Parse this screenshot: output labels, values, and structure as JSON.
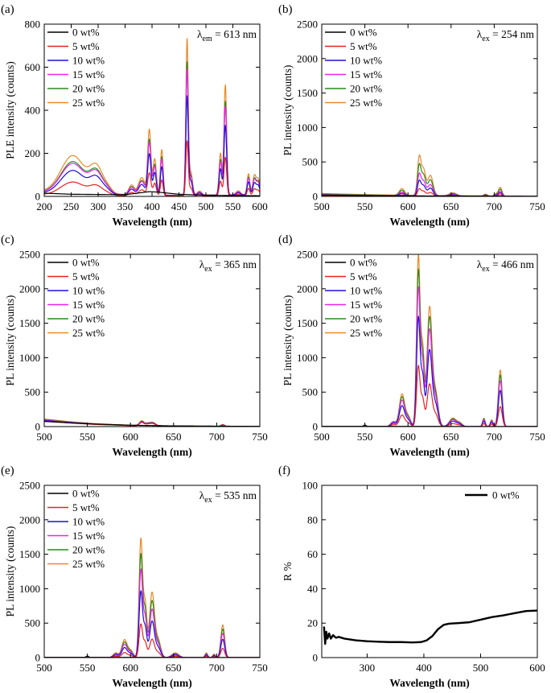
{
  "figure": {
    "colors": {
      "0 wt%": "#000000",
      "5 wt%": "#e8231f",
      "10 wt%": "#1a10d9",
      "15 wt%": "#ee22ee",
      "20 wt%": "#2a8a1e",
      "25 wt%": "#e8892b",
      "axis": "#000000"
    }
  },
  "chart_data": [
    {
      "id": "a",
      "panel_label": "(a)",
      "type": "line",
      "xlabel": "Wavelength (nm)",
      "ylabel": "PLE intensity (counts)",
      "xlim": [
        200,
        600
      ],
      "ylim": [
        0,
        800
      ],
      "xticks": [
        200,
        250,
        300,
        350,
        400,
        450,
        500,
        550,
        600
      ],
      "yticks": [
        0,
        200,
        400,
        600,
        800
      ],
      "annotation": {
        "symbol": "λ",
        "sub": "em",
        "text": " = 613 nm"
      },
      "legend": [
        "0 wt%",
        "5 wt%",
        "10 wt%",
        "15 wt%",
        "20 wt%",
        "25 wt%"
      ],
      "series_shape": {
        "baseline": [
          [
            200,
            0.12
          ],
          [
            240,
            0.08
          ],
          [
            300,
            0.07
          ],
          [
            360,
            0.05
          ],
          [
            400,
            0.04
          ],
          [
            450,
            0.03
          ],
          [
            500,
            0.04
          ],
          [
            600,
            0.05
          ]
        ],
        "peaks": [
          [
            253,
            1.0,
            22
          ],
          [
            297,
            0.65,
            12
          ],
          [
            318,
            0.12,
            8
          ],
          [
            362,
            0.25,
            5
          ],
          [
            381,
            0.45,
            6
          ],
          [
            395,
            1.7,
            3
          ],
          [
            405,
            0.95,
            3
          ],
          [
            418,
            1.2,
            2.5
          ],
          [
            465,
            4.1,
            2.2
          ],
          [
            472,
            0.6,
            3
          ],
          [
            488,
            0.1,
            4
          ],
          [
            527,
            1.1,
            2.5
          ],
          [
            536,
            2.9,
            2.5
          ],
          [
            560,
            0.1,
            4
          ],
          [
            579,
            0.55,
            2.5
          ],
          [
            590,
            0.5,
            3
          ],
          [
            597,
            0.4,
            3
          ]
        ]
      },
      "series": [
        {
          "name": "0 wt%",
          "scale": 0,
          "zero_shape": [
            [
              200,
              15
            ],
            [
              250,
              10
            ],
            [
              350,
              8
            ],
            [
              395,
              22
            ],
            [
              410,
              20
            ],
            [
              450,
              10
            ],
            [
              500,
              5
            ],
            [
              600,
              3
            ]
          ]
        },
        {
          "name": "5 wt%",
          "scale": 62
        },
        {
          "name": "10 wt%",
          "scale": 112
        },
        {
          "name": "15 wt%",
          "scale": 142
        },
        {
          "name": "20 wt%",
          "scale": 150
        },
        {
          "name": "25 wt%",
          "scale": 176
        }
      ]
    },
    {
      "id": "b",
      "panel_label": "(b)",
      "type": "line",
      "xlabel": "Wavelength (nm)",
      "ylabel": "PL intensity (counts)",
      "xlim": [
        500,
        750
      ],
      "ylim": [
        0,
        2500
      ],
      "xticks": [
        500,
        550,
        600,
        650,
        700,
        750
      ],
      "yticks": [
        0,
        500,
        1000,
        1500,
        2000,
        2500
      ],
      "annotation": {
        "symbol": "λ",
        "sub": "ex",
        "text": " = 254 nm"
      },
      "legend": [
        "0 wt%",
        "5 wt%",
        "10 wt%",
        "15 wt%",
        "20 wt%",
        "25 wt%"
      ],
      "series_shape": {
        "baseline": [
          [
            500,
            0.08
          ],
          [
            550,
            0.05
          ],
          [
            600,
            0.03
          ],
          [
            700,
            0.01
          ],
          [
            750,
            0.0
          ]
        ],
        "peaks": [
          [
            593,
            0.18,
            3
          ],
          [
            613,
            1.0,
            2
          ],
          [
            618,
            0.7,
            2.5
          ],
          [
            626,
            0.55,
            3
          ],
          [
            652,
            0.08,
            4
          ],
          [
            690,
            0.05,
            2
          ],
          [
            702,
            0.06,
            2
          ],
          [
            707,
            0.24,
            2
          ]
        ]
      },
      "series": [
        {
          "name": "0 wt%",
          "scale": 0,
          "zero_shape": [
            [
              500,
              20
            ],
            [
              550,
              12
            ],
            [
              600,
              8
            ],
            [
              650,
              5
            ],
            [
              750,
              2
            ]
          ]
        },
        {
          "name": "5 wt%",
          "scale": 100
        },
        {
          "name": "10 wt%",
          "scale": 210
        },
        {
          "name": "15 wt%",
          "scale": 300
        },
        {
          "name": "20 wt%",
          "scale": 420
        },
        {
          "name": "25 wt%",
          "scale": 530
        }
      ]
    },
    {
      "id": "c",
      "panel_label": "(c)",
      "type": "line",
      "xlabel": "Wavelength (nm)",
      "ylabel": "PL intensity (counts)",
      "xlim": [
        500,
        750
      ],
      "ylim": [
        0,
        2500
      ],
      "xticks": [
        500,
        550,
        600,
        650,
        700,
        750
      ],
      "yticks": [
        0,
        500,
        1000,
        1500,
        2000,
        2500
      ],
      "annotation": {
        "symbol": "λ",
        "sub": "ex",
        "text": " = 365 nm"
      },
      "legend": [
        "0 wt%",
        "5 wt%",
        "10 wt%",
        "15 wt%",
        "20 wt%",
        "25 wt%"
      ],
      "series_shape": {
        "baseline": [
          [
            500,
            1.0
          ],
          [
            530,
            0.65
          ],
          [
            560,
            0.38
          ],
          [
            600,
            0.18
          ],
          [
            650,
            0.08
          ],
          [
            700,
            0.03
          ],
          [
            750,
            0.01
          ]
        ],
        "peaks": [
          [
            613,
            0.6,
            2.5
          ],
          [
            620,
            0.3,
            3
          ],
          [
            626,
            0.4,
            3
          ],
          [
            707,
            0.25,
            2
          ]
        ]
      },
      "series": [
        {
          "name": "0 wt%",
          "scale": 0,
          "zero_shape": [
            [
              500,
              75
            ],
            [
              550,
              40
            ],
            [
              600,
              20
            ],
            [
              650,
              10
            ],
            [
              750,
              3
            ]
          ]
        },
        {
          "name": "5 wt%",
          "scale": 80
        },
        {
          "name": "10 wt%",
          "scale": 88
        },
        {
          "name": "15 wt%",
          "scale": 95
        },
        {
          "name": "20 wt%",
          "scale": 102
        },
        {
          "name": "25 wt%",
          "scale": 110
        }
      ]
    },
    {
      "id": "d",
      "panel_label": "(d)",
      "type": "line",
      "xlabel": "Wavelength (nm)",
      "ylabel": "PL intensity (counts)",
      "xlim": [
        500,
        750
      ],
      "ylim": [
        0,
        2500
      ],
      "xticks": [
        500,
        550,
        600,
        650,
        700,
        750
      ],
      "yticks": [
        0,
        500,
        1000,
        1500,
        2000,
        2500
      ],
      "annotation": {
        "symbol": "λ",
        "sub": "ex",
        "text": " = 466 nm"
      },
      "legend": [
        "0 wt%",
        "5 wt%",
        "10 wt%",
        "15 wt%",
        "20 wt%",
        "25 wt%"
      ],
      "series_shape": {
        "baseline": [
          [
            500,
            0
          ],
          [
            750,
            0
          ]
        ],
        "peaks": [
          [
            583,
            0.03,
            3
          ],
          [
            593,
            0.19,
            3
          ],
          [
            600,
            0.06,
            3
          ],
          [
            612,
            1.0,
            2
          ],
          [
            617,
            0.45,
            2
          ],
          [
            625,
            0.7,
            2.8
          ],
          [
            632,
            0.2,
            3
          ],
          [
            652,
            0.05,
            4
          ],
          [
            660,
            0.02,
            3
          ],
          [
            688,
            0.05,
            1.5
          ],
          [
            697,
            0.04,
            1.5
          ],
          [
            707,
            0.335,
            2.2
          ]
        ]
      },
      "series": [
        {
          "name": "0 wt%",
          "scale": 0,
          "zero_shape": [
            [
              500,
              3
            ],
            [
              547,
              3
            ],
            [
              550,
              25
            ],
            [
              553,
              3
            ],
            [
              750,
              2
            ]
          ]
        },
        {
          "name": "5 wt%",
          "scale": 870
        },
        {
          "name": "10 wt%",
          "scale": 1570
        },
        {
          "name": "15 wt%",
          "scale": 1990
        },
        {
          "name": "20 wt%",
          "scale": 2240
        },
        {
          "name": "25 wt%",
          "scale": 2450
        }
      ]
    },
    {
      "id": "e",
      "panel_label": "(e)",
      "type": "line",
      "xlabel": "Wavelength (nm)",
      "ylabel": "PL intensity (counts)",
      "xlim": [
        500,
        750
      ],
      "ylim": [
        0,
        2500
      ],
      "xticks": [
        500,
        550,
        600,
        650,
        700,
        750
      ],
      "yticks": [
        0,
        500,
        1000,
        1500,
        2000,
        2500
      ],
      "annotation": {
        "symbol": "λ",
        "sub": "ex",
        "text": " = 535 nm"
      },
      "legend": [
        "0 wt%",
        "5 wt%",
        "10 wt%",
        "15 wt%",
        "20 wt%",
        "25 wt%"
      ],
      "series_shape": {
        "baseline": [
          [
            500,
            0
          ],
          [
            750,
            0
          ]
        ],
        "peaks": [
          [
            583,
            0.04,
            3
          ],
          [
            593,
            0.15,
            3
          ],
          [
            600,
            0.06,
            3
          ],
          [
            612,
            1.0,
            2
          ],
          [
            617,
            0.45,
            2
          ],
          [
            625,
            0.55,
            2.8
          ],
          [
            632,
            0.15,
            3
          ],
          [
            652,
            0.04,
            4
          ],
          [
            688,
            0.04,
            1.5
          ],
          [
            697,
            0.03,
            1.5
          ],
          [
            707,
            0.28,
            2.2
          ]
        ]
      },
      "series": [
        {
          "name": "0 wt%",
          "scale": 0,
          "zero_shape": [
            [
              500,
              3
            ],
            [
              547,
              3
            ],
            [
              550,
              25
            ],
            [
              553,
              3
            ],
            [
              750,
              2
            ]
          ]
        },
        {
          "name": "5 wt%",
          "scale": 480
        },
        {
          "name": "10 wt%",
          "scale": 950
        },
        {
          "name": "15 wt%",
          "scale": 1260
        },
        {
          "name": "20 wt%",
          "scale": 1480
        },
        {
          "name": "25 wt%",
          "scale": 1700
        }
      ]
    },
    {
      "id": "f",
      "panel_label": "(f)",
      "type": "line",
      "xlabel": "Wavelength (nm)",
      "ylabel": "R %",
      "xlim": [
        220,
        600
      ],
      "ylim": [
        0,
        100
      ],
      "xticks": [
        300,
        400,
        500,
        600
      ],
      "yticks": [
        0,
        20,
        40,
        60,
        80,
        100
      ],
      "legend": [
        "0 wt%"
      ],
      "series": [
        {
          "name": "0 wt%",
          "points": [
            [
              224,
              18
            ],
            [
              226,
              8
            ],
            [
              228,
              15
            ],
            [
              230,
              11
            ],
            [
              233,
              14
            ],
            [
              236,
              11
            ],
            [
              240,
              13
            ],
            [
              245,
              11.5
            ],
            [
              250,
              12
            ],
            [
              260,
              11
            ],
            [
              280,
              10
            ],
            [
              300,
              9.5
            ],
            [
              320,
              9.2
            ],
            [
              340,
              9.0
            ],
            [
              360,
              9.0
            ],
            [
              380,
              8.8
            ],
            [
              395,
              9.0
            ],
            [
              405,
              10.0
            ],
            [
              415,
              12.5
            ],
            [
              425,
              16.5
            ],
            [
              435,
              19.0
            ],
            [
              445,
              19.7
            ],
            [
              460,
              20.0
            ],
            [
              480,
              20.5
            ],
            [
              500,
              22.0
            ],
            [
              520,
              23.5
            ],
            [
              540,
              24.5
            ],
            [
              560,
              25.8
            ],
            [
              580,
              27.0
            ],
            [
              600,
              27.3
            ]
          ]
        }
      ]
    }
  ]
}
